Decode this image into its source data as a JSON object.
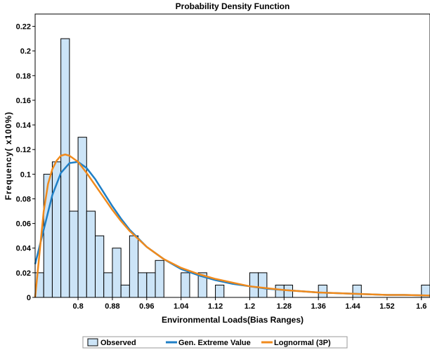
{
  "chart_data": {
    "type": "bar",
    "title": "Probability Density Function",
    "xlabel": "Environmental Loads(Bias Ranges)",
    "ylabel": "Frequency( x100%)",
    "xlim": [
      0.7,
      1.62
    ],
    "ylim": [
      0,
      0.23
    ],
    "grid": false,
    "legend_position": "bottom",
    "x_ticks": [
      0.8,
      0.88,
      0.96,
      1.04,
      1.12,
      1.2,
      1.28,
      1.36,
      1.44,
      1.52,
      1.6
    ],
    "x_tick_labels": [
      "0.8",
      "0.88",
      "0.96",
      "1.04",
      "1.12",
      "1.2",
      "1.28",
      "1.36",
      "1.44",
      "1.52",
      "1.6"
    ],
    "y_ticks": [
      0,
      0.02,
      0.04,
      0.06,
      0.08,
      0.1,
      0.12,
      0.14,
      0.16,
      0.18,
      0.2,
      0.22
    ],
    "y_tick_labels": [
      "0",
      "0.02",
      "0.04",
      "0.06",
      "0.08",
      "0.1",
      "0.12",
      "0.14",
      "0.16",
      "0.18",
      "0.2",
      "0.22"
    ],
    "histogram": {
      "name": "Observed",
      "color": "#cce4f7",
      "edge_color": "#000000",
      "bin_start": 0.7,
      "bin_width": 0.02,
      "values": [
        0.02,
        0.1,
        0.11,
        0.21,
        0.07,
        0.13,
        0.07,
        0.05,
        0.02,
        0.04,
        0.01,
        0.05,
        0.02,
        0.02,
        0.03,
        0,
        0,
        0.02,
        0,
        0.02,
        0,
        0.01,
        0,
        0,
        0,
        0.02,
        0.02,
        0,
        0.01,
        0.01,
        0,
        0,
        0,
        0.01,
        0,
        0,
        0,
        0.01,
        0,
        0,
        0,
        0,
        0,
        0,
        0,
        0.01
      ]
    },
    "series": [
      {
        "name": "Gen. Extreme Value",
        "color": "#1f7fc6",
        "x": [
          0.7,
          0.72,
          0.74,
          0.76,
          0.78,
          0.8,
          0.82,
          0.84,
          0.86,
          0.88,
          0.9,
          0.92,
          0.96,
          1.0,
          1.04,
          1.08,
          1.12,
          1.16,
          1.2,
          1.24,
          1.28,
          1.32,
          1.36,
          1.4,
          1.44,
          1.48,
          1.52,
          1.56,
          1.62
        ],
        "y": [
          0.027,
          0.055,
          0.083,
          0.101,
          0.109,
          0.11,
          0.105,
          0.096,
          0.085,
          0.074,
          0.064,
          0.055,
          0.041,
          0.031,
          0.023,
          0.018,
          0.014,
          0.011,
          0.009,
          0.007,
          0.006,
          0.005,
          0.004,
          0.0035,
          0.003,
          0.0025,
          0.002,
          0.002,
          0.0015
        ]
      },
      {
        "name": "Lognormal (3P)",
        "color": "#f08a1c",
        "x": [
          0.7,
          0.71,
          0.72,
          0.73,
          0.74,
          0.75,
          0.76,
          0.77,
          0.78,
          0.8,
          0.82,
          0.84,
          0.86,
          0.88,
          0.9,
          0.92,
          0.96,
          1.0,
          1.04,
          1.08,
          1.12,
          1.16,
          1.2,
          1.24,
          1.28,
          1.32,
          1.36,
          1.4,
          1.44,
          1.48,
          1.52,
          1.56,
          1.62
        ],
        "y": [
          0.0,
          0.035,
          0.07,
          0.092,
          0.104,
          0.111,
          0.115,
          0.116,
          0.115,
          0.11,
          0.101,
          0.091,
          0.081,
          0.071,
          0.062,
          0.054,
          0.041,
          0.031,
          0.024,
          0.019,
          0.015,
          0.012,
          0.009,
          0.0075,
          0.006,
          0.005,
          0.004,
          0.0035,
          0.003,
          0.0025,
          0.002,
          0.002,
          0.0015
        ]
      }
    ]
  }
}
